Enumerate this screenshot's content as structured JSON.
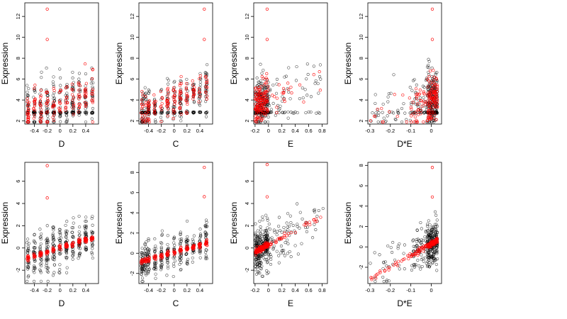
{
  "figure": {
    "background": "#ffffff",
    "black_point_color": "#000000",
    "red_point_color": "#ff0000"
  },
  "chart_data": [
    {
      "type": "scatter",
      "xlabel": "D",
      "ylabel": "Expression",
      "xlim": [
        -0.55,
        0.6
      ],
      "ylim": [
        1.7,
        13.3
      ],
      "xticks": [
        -0.4,
        -0.2,
        0.0,
        0.2,
        0.4
      ],
      "yticks": [
        2,
        4,
        6,
        8,
        10,
        12
      ],
      "pattern": "clusters",
      "xclusters": [
        -0.5,
        -0.4,
        -0.3,
        -0.2,
        -0.1,
        0.0,
        0.1,
        0.2,
        0.3,
        0.4,
        0.5
      ],
      "floor": 2.8,
      "fit": {
        "intercept": 3.8,
        "slope": 1.6,
        "spread": 1.2
      },
      "outliers_black": [],
      "outliers_red": [
        [
          -0.2,
          12.7
        ],
        [
          -0.2,
          9.8
        ]
      ]
    },
    {
      "type": "scatter",
      "xlabel": "C",
      "ylabel": "Expression",
      "xlim": [
        -0.55,
        0.6
      ],
      "ylim": [
        1.7,
        13.3
      ],
      "xticks": [
        -0.4,
        -0.2,
        0.0,
        0.2,
        0.4
      ],
      "yticks": [
        2,
        4,
        6,
        8,
        10,
        12
      ],
      "pattern": "clusters",
      "xclusters": [
        -0.5,
        -0.45,
        -0.4,
        -0.3,
        -0.2,
        -0.1,
        0.0,
        0.1,
        0.2,
        0.3,
        0.4,
        0.5
      ],
      "floor": 2.8,
      "fit": {
        "intercept": 4.0,
        "slope": 2.3,
        "spread": 1.0
      },
      "outliers_black": [],
      "outliers_red": [
        [
          0.47,
          12.7
        ],
        [
          0.47,
          9.8
        ]
      ]
    },
    {
      "type": "scatter",
      "xlabel": "E",
      "ylabel": "Expression",
      "xlim": [
        -0.22,
        0.88
      ],
      "ylim": [
        1.7,
        13.3
      ],
      "xticks": [
        -0.2,
        0.0,
        0.2,
        0.4,
        0.6,
        0.8
      ],
      "yticks": [
        2,
        4,
        6,
        8,
        10,
        12
      ],
      "pattern": "e",
      "floor": 2.8,
      "fit": {
        "intercept": 4.1,
        "slope": 3.0,
        "spread": 1.1
      },
      "outliers_black": [],
      "outliers_red": [
        [
          -0.02,
          12.7
        ],
        [
          -0.02,
          9.8
        ]
      ]
    },
    {
      "type": "scatter",
      "xlabel": "D*E",
      "ylabel": "Expression",
      "xlim": [
        -0.31,
        0.05
      ],
      "ylim": [
        1.7,
        13.3
      ],
      "xticks": [
        -0.3,
        -0.2,
        -0.1,
        0.0
      ],
      "yticks": [
        2,
        4,
        6,
        8,
        10,
        12
      ],
      "pattern": "de",
      "floor": 2.8,
      "fit": {
        "intercept": 4.2,
        "slope": 6.5,
        "spread": 1.3
      },
      "outliers_black": [],
      "outliers_red": [
        [
          0.005,
          12.7
        ],
        [
          0.005,
          9.8
        ]
      ]
    },
    {
      "type": "scatter",
      "xlabel": "D",
      "ylabel": "Expression",
      "xlim": [
        -0.55,
        0.6
      ],
      "ylim": [
        -3.2,
        7.7
      ],
      "xticks": [
        -0.4,
        -0.2,
        0.0,
        0.2,
        0.4
      ],
      "yticks": [
        -2,
        0,
        2,
        4,
        6
      ],
      "pattern": "clusters",
      "xclusters": [
        -0.5,
        -0.4,
        -0.3,
        -0.2,
        -0.1,
        0.0,
        0.1,
        0.2,
        0.3,
        0.4,
        0.5
      ],
      "floor": null,
      "fit": {
        "intercept": 0.0,
        "slope": 1.8,
        "spread": 1.0
      },
      "outliers_black": [],
      "outliers_red": [
        [
          -0.2,
          7.4
        ],
        [
          -0.2,
          4.5
        ]
      ]
    },
    {
      "type": "scatter",
      "xlabel": "C",
      "ylabel": "Expression",
      "xlim": [
        -0.55,
        0.6
      ],
      "ylim": [
        -3.0,
        9.0
      ],
      "xticks": [
        -0.4,
        -0.2,
        0.0,
        0.2,
        0.4
      ],
      "yticks": [
        -2,
        0,
        2,
        4,
        6,
        8
      ],
      "pattern": "clusters",
      "xclusters": [
        -0.5,
        -0.45,
        -0.4,
        -0.3,
        -0.2,
        -0.1,
        0.0,
        0.1,
        0.2,
        0.3,
        0.4,
        0.5
      ],
      "floor": null,
      "fit": {
        "intercept": 0.1,
        "slope": 1.8,
        "spread": 0.9
      },
      "outliers_black": [],
      "outliers_red": [
        [
          0.47,
          8.5
        ],
        [
          0.47,
          5.6
        ]
      ]
    },
    {
      "type": "scatter",
      "xlabel": "E",
      "ylabel": "Expression",
      "xlim": [
        -0.22,
        0.88
      ],
      "ylim": [
        -3.2,
        7.7
      ],
      "xticks": [
        -0.2,
        0.0,
        0.2,
        0.4,
        0.6,
        0.8
      ],
      "yticks": [
        -2,
        0,
        2,
        4,
        6
      ],
      "pattern": "e",
      "floor": null,
      "fit": {
        "intercept": 0.3,
        "slope": 3.2,
        "spread": 1.0
      },
      "outliers_black": [],
      "outliers_red": [
        [
          -0.02,
          7.5
        ],
        [
          -0.02,
          4.6
        ]
      ]
    },
    {
      "type": "scatter",
      "xlabel": "D*E",
      "ylabel": "Expression",
      "xlim": [
        -0.31,
        0.05
      ],
      "ylim": [
        -3.6,
        8.3
      ],
      "xticks": [
        -0.3,
        -0.2,
        -0.1,
        0.0
      ],
      "yticks": [
        -2,
        0,
        2,
        4,
        6,
        8
      ],
      "pattern": "de",
      "floor": null,
      "fit": {
        "intercept": 0.3,
        "slope": 11.5,
        "spread": 1.0
      },
      "outliers_black": [],
      "outliers_red": [
        [
          0.005,
          7.8
        ],
        [
          0.005,
          4.9
        ]
      ]
    }
  ]
}
